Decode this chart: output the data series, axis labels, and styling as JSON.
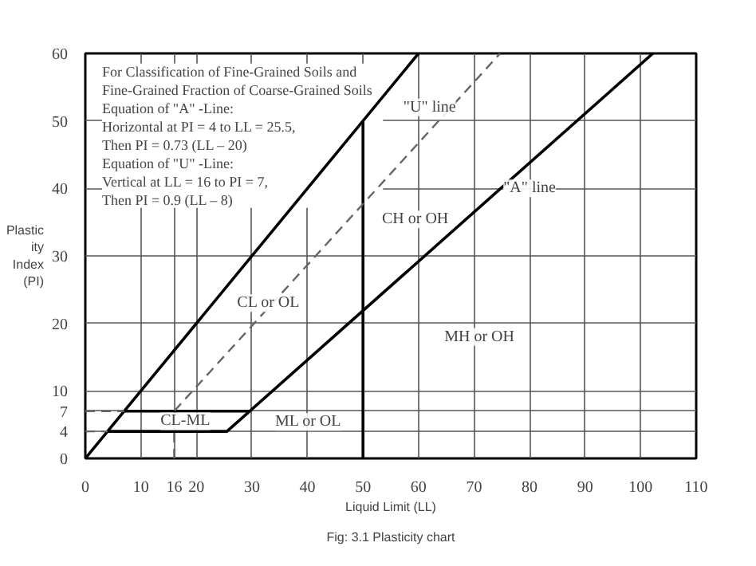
{
  "chart_data": {
    "type": "line",
    "xlabel": "Liquid Limit (LL)",
    "ylabel": "Plastic\nity\nIndex\n(PI)",
    "xlim": [
      0,
      110
    ],
    "ylim": [
      0,
      60
    ],
    "xticks": [
      0,
      10,
      16,
      20,
      30,
      40,
      50,
      60,
      70,
      80,
      90,
      100,
      110
    ],
    "yticks": [
      0,
      4,
      7,
      10,
      20,
      30,
      40,
      50,
      60
    ],
    "grid": true,
    "marker": "none",
    "series": [
      {
        "color": "#000000",
        "x": [
          0,
          60
        ],
        "values": [
          0,
          60
        ],
        "line_style": "solid"
      },
      {
        "color": "#000000",
        "x": [
          4,
          25.5,
          102.2
        ],
        "values": [
          4,
          4,
          60
        ],
        "line_style": "solid"
      },
      {
        "color": "#000000",
        "x": [
          7,
          29.6
        ],
        "values": [
          7,
          7
        ],
        "line_style": "solid"
      },
      {
        "color": "#000000",
        "x": [
          50,
          50
        ],
        "values": [
          0,
          50
        ],
        "line_style": "solid"
      },
      {
        "color": "#666666",
        "x": [
          16,
          16,
          74.7
        ],
        "values": [
          0,
          7,
          60
        ],
        "line_style": "dashed"
      },
      {
        "color": "#666666",
        "x": [
          0,
          7
        ],
        "values": [
          7,
          7
        ],
        "line_style": "dashed"
      },
      {
        "color": "#666666",
        "x": [
          0,
          4
        ],
        "values": [
          4,
          4
        ],
        "line_style": "dashed"
      }
    ],
    "annotations": [
      "For Classification of Fine-Grained Soils and\n   Fine-Grained Fraction of Coarse-Grained Soils\nEquation of \"A\" -Line:\nHorizontal at PI = 4 to LL = 25.5,\n   Then PI = 0.73 (LL – 20)\nEquation of \"U\" -Line:\nVertical at LL = 16 to PI = 7,\n   Then PI = 0.9 (LL – 8)",
      "Fig: 3.1 Plasticity chart",
      {
        "text": "CL-ML",
        "x": 18,
        "y": 5.5
      },
      "ML or OL",
      "CH or OH",
      "MH or OH",
      {
        "text": "CL or OL",
        "x": 33,
        "y": 23
      },
      {
        "text": "\"U\" line",
        "x": 62,
        "y": 52
      },
      {
        "text": "\"A\" line",
        "x": 80,
        "y": 40
      }
    ]
  }
}
